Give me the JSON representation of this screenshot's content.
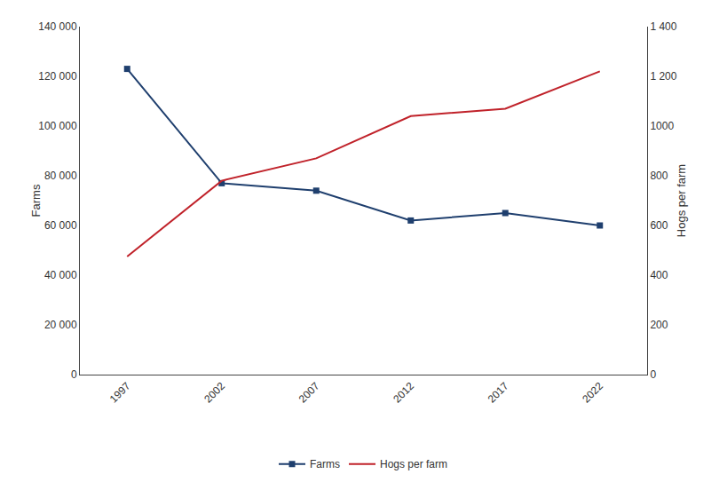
{
  "chart_data": {
    "type": "line",
    "x": [
      1997,
      2002,
      2007,
      2012,
      2017,
      2022
    ],
    "series": [
      {
        "name": "Farms",
        "color": "#1f3f6e",
        "marker": "square",
        "values": [
          123000,
          77000,
          74000,
          62000,
          65000,
          60000
        ]
      },
      {
        "name": "Hogs per farm",
        "color": "#c0222a",
        "axis": "y2",
        "values": [
          475,
          780,
          870,
          1040,
          1070,
          1220
        ]
      }
    ],
    "ylabel": "Farms",
    "y2label": "Hogs per farm",
    "xlim": [
      1994.5,
      2024.5
    ],
    "xticks": [
      1997,
      2002,
      2007,
      2012,
      2017,
      2022
    ],
    "ylim": [
      0,
      140000
    ],
    "yticks": [
      0,
      {
        "value": 20000,
        "label": "20 000"
      },
      {
        "value": 40000,
        "label": "40 000"
      },
      {
        "value": 60000,
        "label": "60 000"
      },
      {
        "value": 80000,
        "label": "80 000"
      },
      {
        "value": 100000,
        "label": "100 000"
      },
      {
        "value": 120000,
        "label": "120 000"
      },
      {
        "value": 140000,
        "label": "140 000"
      }
    ],
    "y2lim": [
      0,
      1400
    ],
    "y2ticks": [
      0,
      200,
      400,
      600,
      800,
      1000,
      {
        "value": 1200,
        "label": "1 200"
      },
      {
        "value": 1400,
        "label": "1 400"
      }
    ],
    "grid": false,
    "legend": "bottom"
  }
}
